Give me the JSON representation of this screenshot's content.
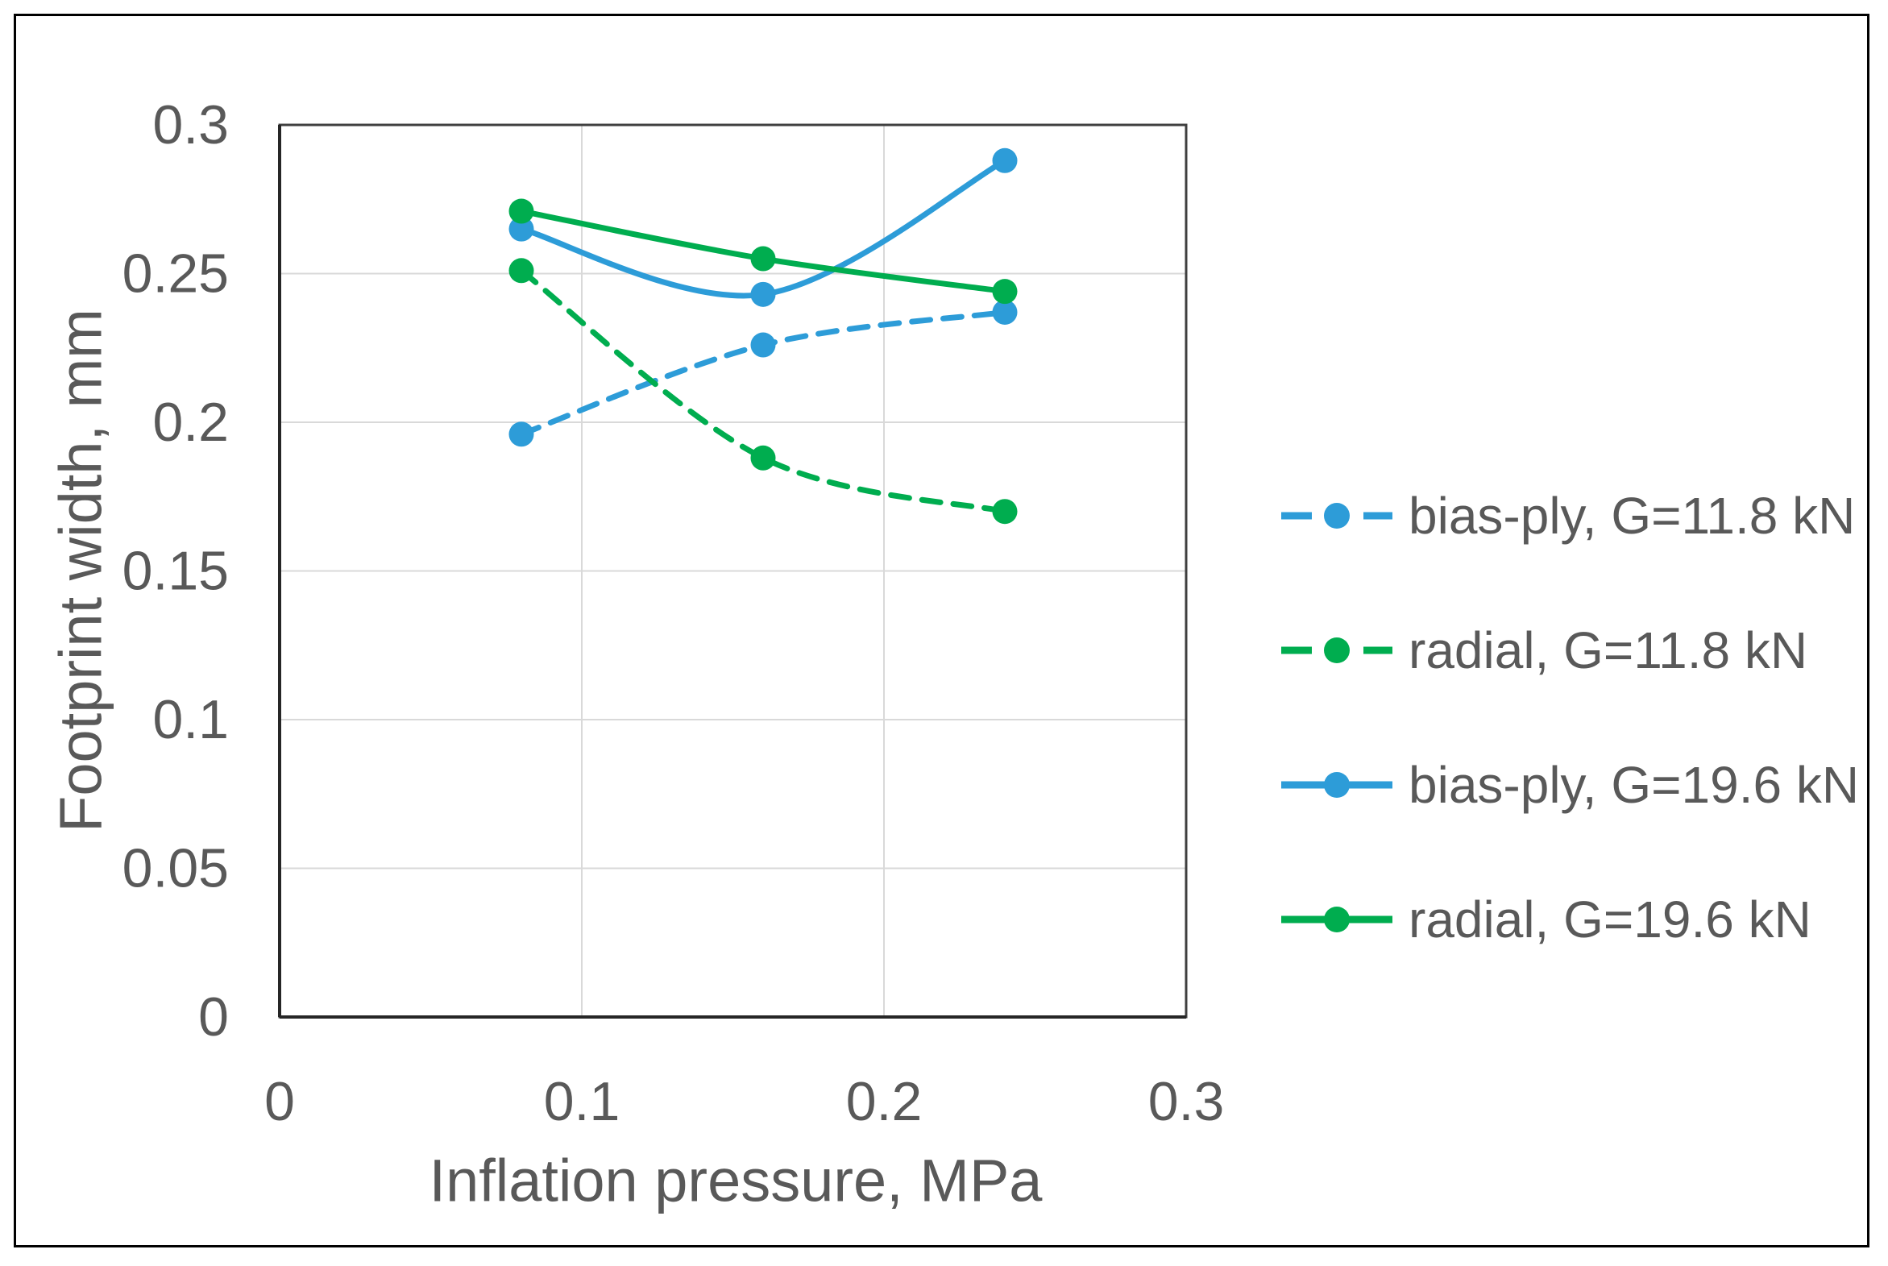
{
  "chart_data": {
    "type": "line",
    "title": "",
    "xlabel": "Inflation pressure, MPa",
    "ylabel": "Footprint width, mm",
    "xlim": [
      0,
      0.3
    ],
    "ylim": [
      0,
      0.3
    ],
    "x_ticks": [
      0,
      0.1,
      0.2,
      0.3
    ],
    "y_ticks": [
      0,
      0.05,
      0.1,
      0.15,
      0.2,
      0.25,
      0.3
    ],
    "x_tick_labels": [
      "0",
      "0.1",
      "0.2",
      "0.3"
    ],
    "y_tick_labels": [
      "0",
      "0.05",
      "0.1",
      "0.15",
      "0.2",
      "0.25",
      "0.3"
    ],
    "grid": true,
    "legend_position": "right",
    "x": [
      0.08,
      0.16,
      0.24
    ],
    "series": [
      {
        "name": "bias-ply, G=11.8 kN",
        "color": "#2D9CD8",
        "style": "dashed",
        "marker": "circle",
        "values": [
          0.196,
          0.226,
          0.237
        ]
      },
      {
        "name": "radial, G=11.8 kN",
        "color": "#00AD4F",
        "style": "dashed",
        "marker": "circle",
        "values": [
          0.251,
          0.188,
          0.17
        ]
      },
      {
        "name": "bias-ply, G=19.6 kN",
        "color": "#2D9CD8",
        "style": "solid",
        "marker": "circle",
        "values": [
          0.265,
          0.243,
          0.288
        ]
      },
      {
        "name": "radial, G=19.6 kN",
        "color": "#00AD4F",
        "style": "solid",
        "marker": "circle",
        "values": [
          0.271,
          0.255,
          0.244
        ]
      }
    ]
  },
  "colors": {
    "accent_blue": "#2D9CD8",
    "accent_green": "#00AD4F",
    "text": "#595959",
    "gridline": "#D9D9D9",
    "plot_border": "#3F3F3F",
    "axis_line": "#262626",
    "frame": "#000000",
    "background": "#FFFFFF"
  }
}
